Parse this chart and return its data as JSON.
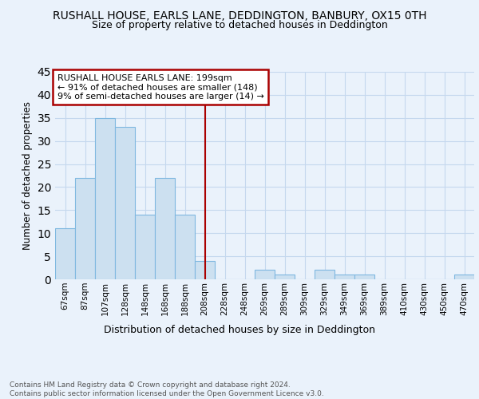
{
  "title": "RUSHALL HOUSE, EARLS LANE, DEDDINGTON, BANBURY, OX15 0TH",
  "subtitle": "Size of property relative to detached houses in Deddington",
  "xlabel": "Distribution of detached houses by size in Deddington",
  "ylabel": "Number of detached properties",
  "categories": [
    "67sqm",
    "87sqm",
    "107sqm",
    "128sqm",
    "148sqm",
    "168sqm",
    "188sqm",
    "208sqm",
    "228sqm",
    "248sqm",
    "269sqm",
    "289sqm",
    "309sqm",
    "329sqm",
    "349sqm",
    "369sqm",
    "389sqm",
    "410sqm",
    "430sqm",
    "450sqm",
    "470sqm"
  ],
  "values": [
    11,
    22,
    35,
    33,
    14,
    22,
    14,
    4,
    0,
    0,
    2,
    1,
    0,
    2,
    1,
    1,
    0,
    0,
    0,
    0,
    1
  ],
  "bar_color": "#cce0f0",
  "bar_edge_color": "#7fb8e0",
  "vline_x_index": 7,
  "vline_color": "#aa0000",
  "annotation_title": "RUSHALL HOUSE EARLS LANE: 199sqm",
  "annotation_line1": "← 91% of detached houses are smaller (148)",
  "annotation_line2": "9% of semi-detached houses are larger (14) →",
  "annotation_box_color": "#aa0000",
  "ylim": [
    0,
    45
  ],
  "yticks": [
    0,
    5,
    10,
    15,
    20,
    25,
    30,
    35,
    40,
    45
  ],
  "footnote": "Contains HM Land Registry data © Crown copyright and database right 2024.\nContains public sector information licensed under the Open Government Licence v3.0.",
  "bg_color": "#eaf2fb",
  "plot_bg_color": "#eaf2fb",
  "grid_color": "#c5d8ee",
  "title_fontsize": 10,
  "subtitle_fontsize": 9
}
